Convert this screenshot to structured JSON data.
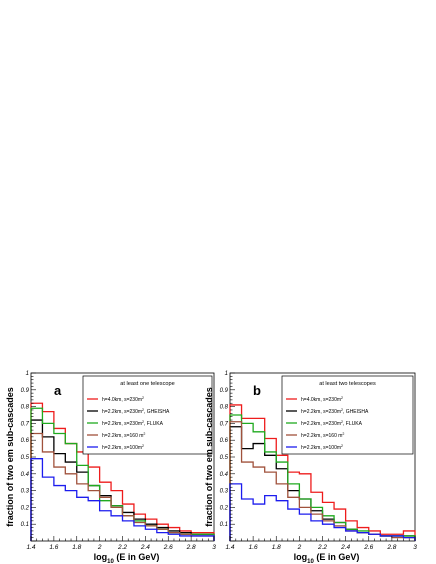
{
  "legend_entries": [
    {
      "text": "h=4.0km, s=230m",
      "sup": "2",
      "suffix": "",
      "color": "#ee1c1c"
    },
    {
      "text": "h=2.2km, s=230m",
      "sup": "2",
      "suffix": ", GHEISHA",
      "color": "#000000"
    },
    {
      "text": "h=2.2km, s=230m",
      "sup": "2",
      "suffix": ", FLUKA",
      "color": "#1faa1f"
    },
    {
      "text": "h=2.2km, s=160 m",
      "sup": "2",
      "suffix": "",
      "color": "#a0523c"
    },
    {
      "text": "h=2.2km, s=100m",
      "sup": "2",
      "suffix": "",
      "color": "#1c1cee"
    }
  ],
  "chart_data": [
    {
      "type": "line",
      "panel_label": "a",
      "legend_title": "at least one telescope",
      "ylabel": "fraction of two em sub-cascades",
      "xlabel_sub": "10",
      "xlabel_main": "log",
      "xlabel_rest": " (E in GeV)",
      "xlim": [
        1.4,
        3.0
      ],
      "ylim": [
        0,
        1
      ],
      "x_ticks": [
        "1.4",
        "1.6",
        "1.8",
        "2",
        "2.2",
        "2.4",
        "2.6",
        "2.8",
        "3"
      ],
      "y_ticks": [
        "0.1",
        "0.2",
        "0.3",
        "0.4",
        "0.5",
        "0.6",
        "0.7",
        "0.8",
        "0.9",
        "1"
      ],
      "bin_edges": [
        1.4,
        1.5,
        1.6,
        1.7,
        1.8,
        1.9,
        2.0,
        2.1,
        2.2,
        2.3,
        2.4,
        2.5,
        2.6,
        2.7,
        2.8,
        2.9,
        3.0
      ],
      "series": [
        {
          "values": [
            0.82,
            0.77,
            0.67,
            0.58,
            0.53,
            0.44,
            0.35,
            0.3,
            0.22,
            0.16,
            0.13,
            0.1,
            0.08,
            0.06,
            0.05,
            0.05
          ]
        },
        {
          "values": [
            0.72,
            0.62,
            0.52,
            0.47,
            0.41,
            0.33,
            0.27,
            0.21,
            0.17,
            0.13,
            0.1,
            0.08,
            0.06,
            0.05,
            0.04,
            0.04
          ]
        },
        {
          "values": [
            0.79,
            0.7,
            0.64,
            0.58,
            0.45,
            0.33,
            0.24,
            0.21,
            0.15,
            0.12,
            0.09,
            0.07,
            0.05,
            0.04,
            0.04,
            0.04
          ]
        },
        {
          "values": [
            0.64,
            0.53,
            0.44,
            0.4,
            0.34,
            0.3,
            0.26,
            0.2,
            0.15,
            0.11,
            0.09,
            0.07,
            0.05,
            0.04,
            0.03,
            0.03
          ]
        },
        {
          "values": [
            0.49,
            0.38,
            0.33,
            0.3,
            0.26,
            0.24,
            0.18,
            0.15,
            0.12,
            0.09,
            0.07,
            0.05,
            0.04,
            0.03,
            0.03,
            0.03
          ]
        }
      ]
    },
    {
      "type": "line",
      "panel_label": "b",
      "legend_title": "at least two telescopes",
      "ylabel": "fraction of two em sub-cascades",
      "xlabel_sub": "10",
      "xlabel_main": "log",
      "xlabel_rest": " (E in GeV)",
      "xlim": [
        1.4,
        3.0
      ],
      "ylim": [
        0,
        1
      ],
      "x_ticks": [
        "1.4",
        "1.6",
        "1.8",
        "2",
        "2.2",
        "2.4",
        "2.6",
        "2.8",
        "3"
      ],
      "y_ticks": [
        "0.1",
        "0.2",
        "0.3",
        "0.4",
        "0.5",
        "0.6",
        "0.7",
        "0.8",
        "0.9",
        "1"
      ],
      "bin_edges": [
        1.4,
        1.5,
        1.6,
        1.7,
        1.8,
        1.9,
        2.0,
        2.1,
        2.2,
        2.3,
        2.4,
        2.5,
        2.6,
        2.7,
        2.8,
        2.9,
        3.0
      ],
      "series": [
        {
          "values": [
            0.81,
            0.73,
            0.73,
            0.61,
            0.51,
            0.41,
            0.4,
            0.29,
            0.23,
            0.19,
            0.12,
            0.08,
            0.06,
            0.04,
            0.04,
            0.06
          ]
        },
        {
          "values": [
            0.68,
            0.55,
            0.58,
            0.51,
            0.43,
            0.3,
            0.25,
            0.18,
            0.13,
            0.11,
            0.07,
            0.05,
            0.04,
            0.03,
            0.03,
            0.03
          ]
        },
        {
          "values": [
            0.75,
            0.7,
            0.65,
            0.53,
            0.47,
            0.34,
            0.25,
            0.2,
            0.15,
            0.11,
            0.07,
            0.06,
            0.04,
            0.03,
            0.03,
            0.03
          ]
        },
        {
          "values": [
            0.71,
            0.47,
            0.44,
            0.41,
            0.34,
            0.26,
            0.2,
            0.16,
            0.12,
            0.09,
            0.06,
            0.05,
            0.04,
            0.03,
            0.02,
            0.02
          ]
        },
        {
          "values": [
            0.34,
            0.25,
            0.22,
            0.27,
            0.24,
            0.19,
            0.16,
            0.12,
            0.1,
            0.08,
            0.06,
            0.05,
            0.04,
            0.03,
            0.03,
            0.02
          ]
        }
      ]
    }
  ]
}
